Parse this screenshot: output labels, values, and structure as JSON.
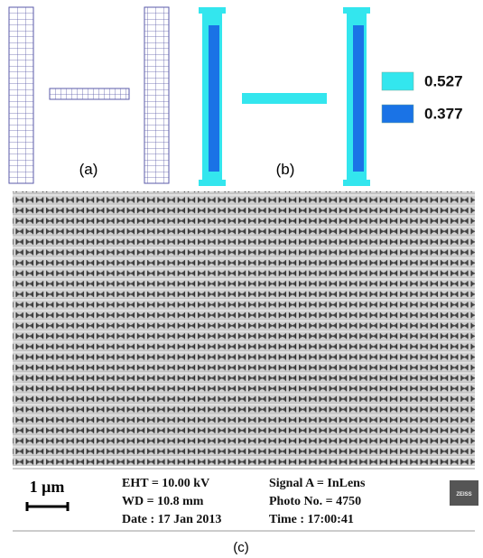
{
  "panels": {
    "a": {
      "label": "(a)"
    },
    "b": {
      "label": "(b)",
      "legend": [
        {
          "color": "#33e6ee",
          "label": "0.527"
        },
        {
          "color": "#1a73e6",
          "label": "0.377"
        }
      ]
    },
    "c": {
      "label": "(c)",
      "scale_bar": "1 μm",
      "info": [
        [
          "EHT = 10.00 kV",
          "WD = 10.8 mm",
          "Date : 17 Jan 2013"
        ],
        [
          "Signal A = InLens",
          "Photo No. = 4750",
          "Time :    17:00:41"
        ]
      ],
      "logo": "ZEISS"
    }
  }
}
